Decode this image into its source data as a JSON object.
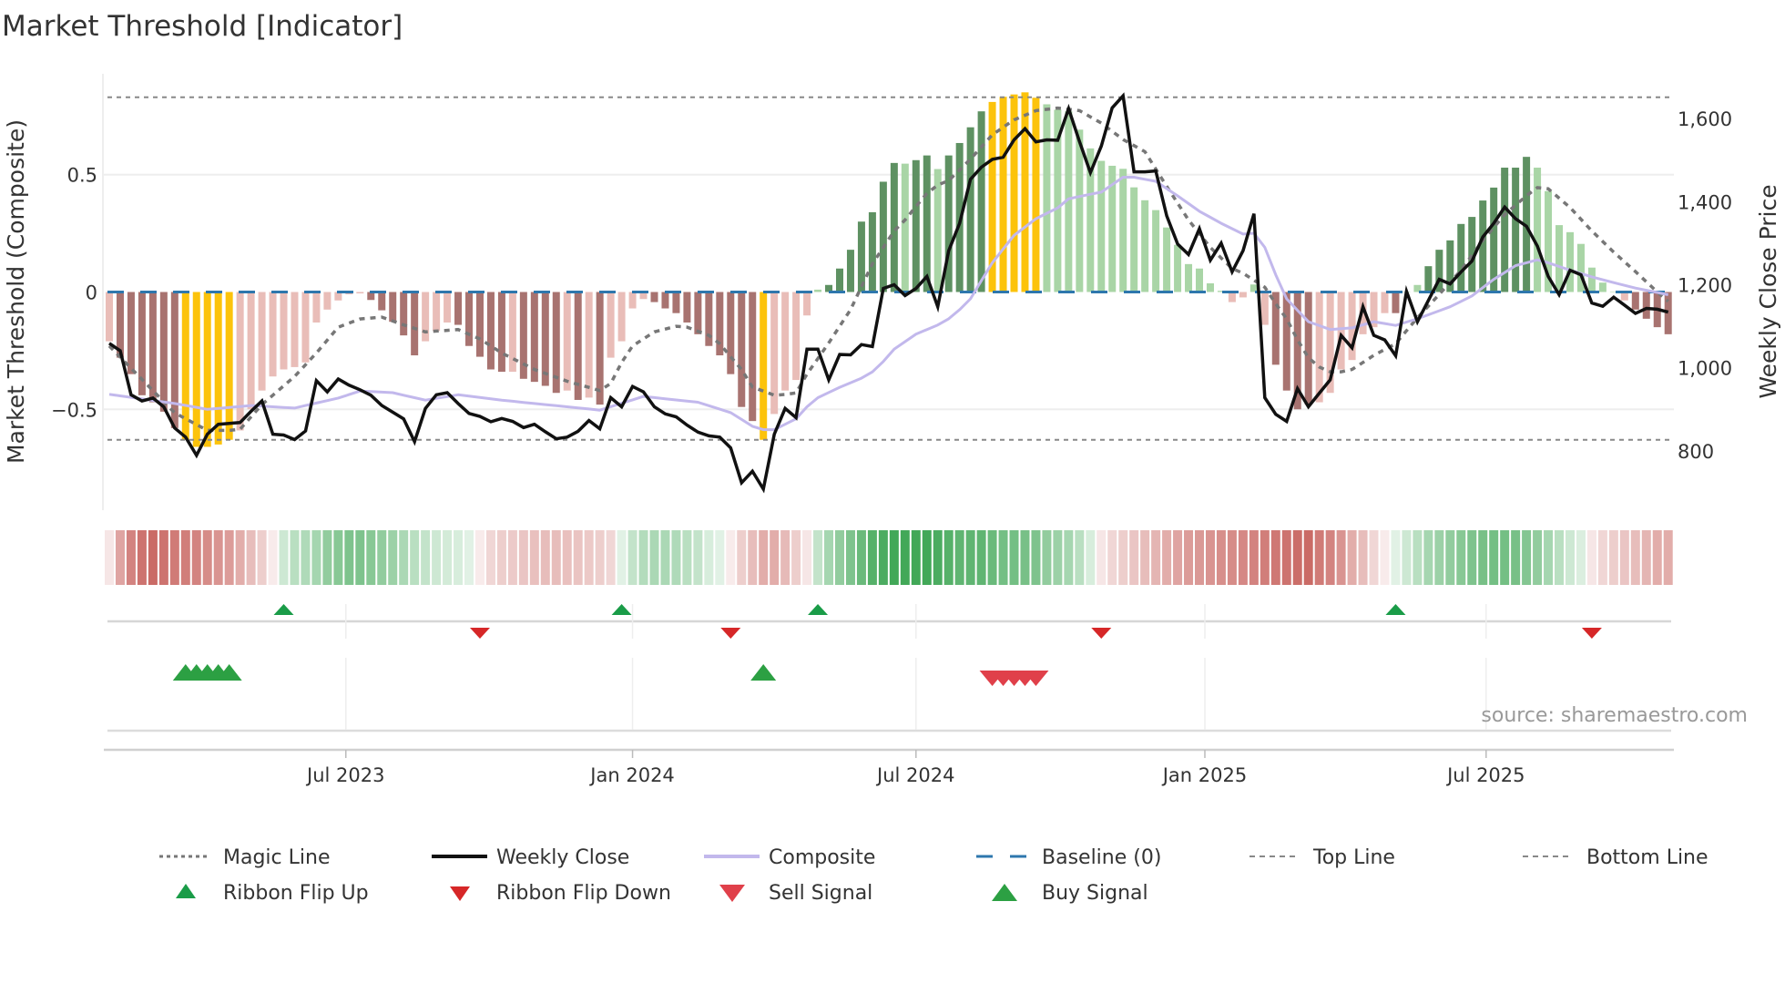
{
  "chart_data": {
    "type": "bar",
    "title": "Market Threshold [Indicator]",
    "ylabel_left": "Market Threshold (Composite)",
    "ylabel_right": "Weekly Close Price",
    "source": "source: sharemaestro.com",
    "ylim_left": [
      -0.93,
      0.93
    ],
    "ylim_right": [
      657,
      1708
    ],
    "xlim_weeks": [
      0.5,
      144.5
    ],
    "grid": true,
    "left_ticks": [
      {
        "value": 0.5,
        "label": "0.5"
      },
      {
        "value": 0,
        "label": "0"
      },
      {
        "value": -0.5,
        "label": "−0.5"
      }
    ],
    "right_ticks": [
      {
        "value": 1600,
        "label": "1,600"
      },
      {
        "value": 1400,
        "label": "1,400"
      },
      {
        "value": 1200,
        "label": "1,200"
      },
      {
        "value": 1000,
        "label": "1,000"
      },
      {
        "value": 800,
        "label": "800"
      }
    ],
    "x_ticks": [
      {
        "week": 22.7,
        "label": "Jul 2023"
      },
      {
        "week": 49.0,
        "label": "Jan 2024"
      },
      {
        "week": 75.0,
        "label": "Jul 2024"
      },
      {
        "week": 101.5,
        "label": "Jan 2025"
      },
      {
        "week": 127.3,
        "label": "Jul 2025"
      }
    ],
    "top_line": 0.83,
    "bottom_line": -0.63,
    "baseline": 0,
    "colors": {
      "dk": "#5e9162",
      "lg": "#a9d5a6",
      "dr": "#a87370",
      "lr": "#e9bdb8",
      "y": "#fcc30b",
      "close": "#111111",
      "composite": "#c2b8ec",
      "magic": "#777777",
      "baseline": "#2e77ad",
      "guide": "#888888",
      "ribbon_red": "#c45a55",
      "ribbon_green": "#38a34f",
      "flip_up": "#1a9c48",
      "flip_down": "#d62728",
      "buy": "#2ca043",
      "sell": "#e0404a"
    },
    "histogram": [
      -0.21,
      -0.28,
      -0.35,
      -0.44,
      -0.47,
      -0.51,
      -0.58,
      -0.63,
      -0.66,
      -0.66,
      -0.65,
      -0.63,
      -0.59,
      -0.5,
      -0.42,
      -0.36,
      -0.33,
      -0.32,
      -0.3,
      -0.13,
      -0.075,
      -0.036,
      -0.01,
      -0.006,
      -0.034,
      -0.078,
      -0.127,
      -0.185,
      -0.27,
      -0.21,
      -0.166,
      -0.13,
      -0.14,
      -0.23,
      -0.276,
      -0.33,
      -0.34,
      -0.34,
      -0.37,
      -0.383,
      -0.4,
      -0.43,
      -0.42,
      -0.46,
      -0.45,
      -0.48,
      -0.28,
      -0.21,
      -0.07,
      -0.03,
      -0.043,
      -0.07,
      -0.09,
      -0.13,
      -0.18,
      -0.23,
      -0.27,
      -0.35,
      -0.49,
      -0.55,
      -0.63,
      -0.52,
      -0.42,
      -0.375,
      -0.1,
      0.01,
      0.03,
      0.1,
      0.18,
      0.3,
      0.34,
      0.47,
      0.55,
      0.547,
      0.562,
      0.582,
      0.524,
      0.582,
      0.635,
      0.702,
      0.77,
      0.81,
      0.832,
      0.842,
      0.851,
      0.828,
      0.8,
      0.777,
      0.77,
      0.692,
      0.612,
      0.559,
      0.538,
      0.525,
      0.446,
      0.391,
      0.349,
      0.275,
      0.201,
      0.119,
      0.1,
      0.037,
      0.005,
      -0.043,
      -0.023,
      0.032,
      -0.14,
      -0.31,
      -0.42,
      -0.5,
      -0.48,
      -0.47,
      -0.43,
      -0.33,
      -0.29,
      -0.18,
      -0.15,
      -0.09,
      -0.09,
      0,
      0.03,
      0.11,
      0.18,
      0.22,
      0.29,
      0.32,
      0.39,
      0.445,
      0.53,
      0.53,
      0.576,
      0.53,
      0.43,
      0.285,
      0.255,
      0.205,
      0.104,
      0.04,
      0.0,
      -0.036,
      -0.075,
      -0.114,
      -0.15,
      -0.18
    ],
    "histogram_type": [
      "lr",
      "dr",
      "dr",
      "dr",
      "dr",
      "dr",
      "dr",
      "y",
      "y",
      "y",
      "y",
      "y",
      "lr",
      "lr",
      "lr",
      "lr",
      "lr",
      "lr",
      "lr",
      "lr",
      "lr",
      "lr",
      "lr",
      "lr",
      "dr",
      "dr",
      "dr",
      "dr",
      "dr",
      "lr",
      "lr",
      "lr",
      "dr",
      "dr",
      "dr",
      "dr",
      "dr",
      "lr",
      "dr",
      "dr",
      "dr",
      "dr",
      "lr",
      "dr",
      "lr",
      "dr",
      "lr",
      "lr",
      "lr",
      "lr",
      "dr",
      "dr",
      "dr",
      "dr",
      "dr",
      "dr",
      "dr",
      "dr",
      "dr",
      "dr",
      "y",
      "lr",
      "lr",
      "lr",
      "lr",
      "lg",
      "dk",
      "dk",
      "dk",
      "dk",
      "dk",
      "dk",
      "dk",
      "lg",
      "dk",
      "dk",
      "lg",
      "dk",
      "dk",
      "dk",
      "dk",
      "y",
      "y",
      "y",
      "y",
      "y",
      "lg",
      "lg",
      "lg",
      "lg",
      "lg",
      "lg",
      "lg",
      "lg",
      "lg",
      "lg",
      "lg",
      "lg",
      "lg",
      "lg",
      "lg",
      "lg",
      "lg",
      "lr",
      "lr",
      "lg",
      "lr",
      "dr",
      "dr",
      "dr",
      "dr",
      "lr",
      "lr",
      "lr",
      "lr",
      "lr",
      "lr",
      "lr",
      "dr",
      "lg",
      "lg",
      "dk",
      "dk",
      "dk",
      "dk",
      "dk",
      "dk",
      "dk",
      "dk",
      "dk",
      "dk",
      "lg",
      "lg",
      "lg",
      "lg",
      "lg",
      "lg",
      "lg",
      "lg",
      "lr",
      "dr",
      "dr",
      "dr",
      "dr"
    ],
    "weekly_close": [
      1059,
      1041,
      935,
      920,
      927,
      906,
      855,
      833,
      789,
      840,
      864,
      866,
      868,
      895,
      920,
      840,
      838,
      827,
      848,
      969,
      942,
      973,
      958,
      947,
      934,
      909,
      893,
      877,
      822,
      902,
      935,
      940,
      914,
      890,
      883,
      870,
      878,
      871,
      856,
      864,
      846,
      829,
      833,
      847,
      873,
      853,
      928,
      906,
      955,
      942,
      906,
      889,
      882,
      862,
      845,
      836,
      833,
      807,
      723,
      751,
      708,
      840,
      902,
      880,
      1045,
      1045,
      971,
      1032,
      1031,
      1056,
      1051,
      1191,
      1200,
      1174,
      1191,
      1220,
      1147,
      1282,
      1348,
      1454,
      1483,
      1502,
      1507,
      1549,
      1576,
      1544,
      1549,
      1548,
      1624,
      1545,
      1470,
      1534,
      1626,
      1655,
      1472,
      1472,
      1474,
      1366,
      1298,
      1273,
      1335,
      1259,
      1300,
      1231,
      1282,
      1371,
      928,
      888,
      871,
      950,
      906,
      939,
      971,
      1078,
      1048,
      1147,
      1078,
      1067,
      1029,
      1184,
      1111,
      1162,
      1213,
      1202,
      1231,
      1257,
      1315,
      1348,
      1387,
      1359,
      1341,
      1293,
      1220,
      1176,
      1235,
      1224,
      1156,
      1148,
      1170,
      1151,
      1131,
      1143,
      1141,
      1134
    ],
    "composite_points": [
      [
        1,
        936
      ],
      [
        7,
        914
      ],
      [
        10,
        900
      ],
      [
        14,
        909
      ],
      [
        18,
        903
      ],
      [
        22,
        927
      ],
      [
        24,
        944
      ],
      [
        27,
        940
      ],
      [
        30,
        922
      ],
      [
        33,
        935
      ],
      [
        37,
        922
      ],
      [
        46,
        898
      ],
      [
        50,
        931
      ],
      [
        55,
        917
      ],
      [
        58,
        892
      ],
      [
        60,
        859
      ],
      [
        61,
        851
      ],
      [
        62,
        851
      ],
      [
        64,
        877
      ],
      [
        65,
        906
      ],
      [
        66,
        928
      ],
      [
        68,
        953
      ],
      [
        70,
        975
      ],
      [
        71,
        990
      ],
      [
        72,
        1015
      ],
      [
        73,
        1045
      ],
      [
        75,
        1081
      ],
      [
        77,
        1103
      ],
      [
        78,
        1118
      ],
      [
        79,
        1140
      ],
      [
        80,
        1166
      ],
      [
        81,
        1210
      ],
      [
        82,
        1253
      ],
      [
        84,
        1319
      ],
      [
        86,
        1359
      ],
      [
        88,
        1385
      ],
      [
        89,
        1407
      ],
      [
        91,
        1418
      ],
      [
        92,
        1423
      ],
      [
        94,
        1459
      ],
      [
        95,
        1459
      ],
      [
        97,
        1449
      ],
      [
        99,
        1414
      ],
      [
        101,
        1377
      ],
      [
        103,
        1348
      ],
      [
        105,
        1322
      ],
      [
        106,
        1324
      ],
      [
        107,
        1290
      ],
      [
        108,
        1224
      ],
      [
        109,
        1166
      ],
      [
        111,
        1111
      ],
      [
        113,
        1092
      ],
      [
        115,
        1096
      ],
      [
        117,
        1111
      ],
      [
        119,
        1102
      ],
      [
        121,
        1118
      ],
      [
        124,
        1147
      ],
      [
        126,
        1173
      ],
      [
        128,
        1213
      ],
      [
        130,
        1246
      ],
      [
        132,
        1260
      ],
      [
        133,
        1253
      ],
      [
        135,
        1235
      ],
      [
        137,
        1219
      ],
      [
        139,
        1205
      ],
      [
        141,
        1192
      ],
      [
        144,
        1176
      ]
    ],
    "magic_points": [
      [
        1,
        -0.23
      ],
      [
        7,
        -0.515
      ],
      [
        10,
        -0.59
      ],
      [
        12,
        -0.59
      ],
      [
        13,
        -0.585
      ],
      [
        15,
        -0.48
      ],
      [
        18,
        -0.36
      ],
      [
        20,
        -0.26
      ],
      [
        22,
        -0.15
      ],
      [
        24,
        -0.115
      ],
      [
        26,
        -0.107
      ],
      [
        28,
        -0.14
      ],
      [
        30,
        -0.17
      ],
      [
        33,
        -0.16
      ],
      [
        35,
        -0.2
      ],
      [
        37,
        -0.26
      ],
      [
        40,
        -0.33
      ],
      [
        43,
        -0.38
      ],
      [
        46,
        -0.42
      ],
      [
        47,
        -0.39
      ],
      [
        48,
        -0.3
      ],
      [
        49,
        -0.23
      ],
      [
        51,
        -0.17
      ],
      [
        53,
        -0.146
      ],
      [
        54,
        -0.15
      ],
      [
        56,
        -0.185
      ],
      [
        57,
        -0.22
      ],
      [
        58,
        -0.276
      ],
      [
        59,
        -0.33
      ],
      [
        60,
        -0.405
      ],
      [
        62,
        -0.44
      ],
      [
        63,
        -0.437
      ],
      [
        64,
        -0.43
      ],
      [
        65,
        -0.35
      ],
      [
        67,
        -0.217
      ],
      [
        69,
        -0.075
      ],
      [
        71,
        0.12
      ],
      [
        73,
        0.26
      ],
      [
        74,
        0.307
      ],
      [
        75,
        0.365
      ],
      [
        76,
        0.42
      ],
      [
        77,
        0.456
      ],
      [
        78,
        0.475
      ],
      [
        80,
        0.566
      ],
      [
        82,
        0.67
      ],
      [
        84,
        0.734
      ],
      [
        86,
        0.773
      ],
      [
        88,
        0.784
      ],
      [
        90,
        0.773
      ],
      [
        92,
        0.72
      ],
      [
        94,
        0.65
      ],
      [
        96,
        0.598
      ],
      [
        98,
        0.45
      ],
      [
        100,
        0.307
      ],
      [
        102,
        0.19
      ],
      [
        104,
        0.1
      ],
      [
        105,
        0.08
      ],
      [
        107,
        0.02
      ],
      [
        108,
        -0.05
      ],
      [
        109,
        -0.114
      ],
      [
        110,
        -0.204
      ],
      [
        111,
        -0.28
      ],
      [
        112,
        -0.32
      ],
      [
        113,
        -0.34
      ],
      [
        114,
        -0.34
      ],
      [
        115,
        -0.33
      ],
      [
        117,
        -0.27
      ],
      [
        119,
        -0.22
      ],
      [
        121,
        -0.11
      ],
      [
        123,
        -0.01
      ],
      [
        125,
        0.093
      ],
      [
        127,
        0.22
      ],
      [
        129,
        0.33
      ],
      [
        131,
        0.41
      ],
      [
        132,
        0.445
      ],
      [
        133,
        0.44
      ],
      [
        135,
        0.36
      ],
      [
        137,
        0.26
      ],
      [
        139,
        0.17
      ],
      [
        141,
        0.087
      ],
      [
        143,
        0
      ],
      [
        144,
        -0.04
      ]
    ],
    "ribbon_strength": [
      -0.15,
      -0.55,
      -0.75,
      -0.85,
      -0.9,
      -0.85,
      -0.8,
      -0.78,
      -0.75,
      -0.7,
      -0.65,
      -0.6,
      -0.5,
      -0.4,
      -0.3,
      -0.12,
      0.25,
      0.35,
      0.4,
      0.45,
      0.55,
      0.6,
      0.65,
      0.65,
      0.6,
      0.55,
      0.5,
      0.42,
      0.35,
      0.3,
      0.25,
      0.22,
      0.2,
      0.15,
      -0.12,
      -0.25,
      -0.3,
      -0.32,
      -0.35,
      -0.38,
      -0.4,
      -0.4,
      -0.38,
      -0.36,
      -0.33,
      -0.3,
      -0.25,
      0.15,
      0.3,
      0.38,
      0.42,
      0.42,
      0.4,
      0.35,
      0.3,
      0.2,
      0.15,
      -0.12,
      -0.3,
      -0.4,
      -0.5,
      -0.5,
      -0.42,
      -0.3,
      -0.15,
      0.3,
      0.45,
      0.55,
      0.65,
      0.75,
      0.85,
      0.9,
      0.95,
      0.95,
      0.95,
      0.95,
      0.9,
      0.85,
      0.8,
      0.8,
      0.8,
      0.75,
      0.7,
      0.7,
      0.68,
      0.65,
      0.55,
      0.5,
      0.45,
      0.35,
      0.2,
      -0.15,
      -0.25,
      -0.3,
      -0.35,
      -0.4,
      -0.45,
      -0.5,
      -0.55,
      -0.6,
      -0.62,
      -0.65,
      -0.68,
      -0.7,
      -0.72,
      -0.75,
      -0.78,
      -0.82,
      -0.85,
      -0.88,
      -0.9,
      -0.8,
      -0.75,
      -0.65,
      -0.5,
      -0.4,
      -0.25,
      -0.12,
      0.15,
      0.25,
      0.35,
      0.45,
      0.5,
      0.55,
      0.6,
      0.65,
      0.68,
      0.7,
      0.7,
      0.68,
      0.62,
      0.55,
      0.45,
      0.35,
      0.25,
      0.18,
      -0.15,
      -0.25,
      -0.3,
      -0.35,
      -0.4,
      -0.45,
      -0.5,
      -0.5
    ],
    "ribbon_flip_up_weeks": [
      17,
      48,
      66,
      119
    ],
    "ribbon_flip_down_weeks": [
      35,
      58,
      92,
      137
    ],
    "buy_signal_weeks": [
      8,
      9,
      10,
      11,
      12,
      61
    ],
    "sell_signal_weeks": [
      82,
      83,
      84,
      85,
      86
    ],
    "legend": {
      "magic": "Magic Line",
      "close": "Weekly Close",
      "composite": "Composite",
      "baseline": "Baseline (0)",
      "top": "Top Line",
      "bottom": "Bottom Line",
      "flip_up": "Ribbon Flip Up",
      "flip_down": "Ribbon Flip Down",
      "sell": "Sell Signal",
      "buy": "Buy Signal"
    },
    "legend_placement": "bottom"
  }
}
